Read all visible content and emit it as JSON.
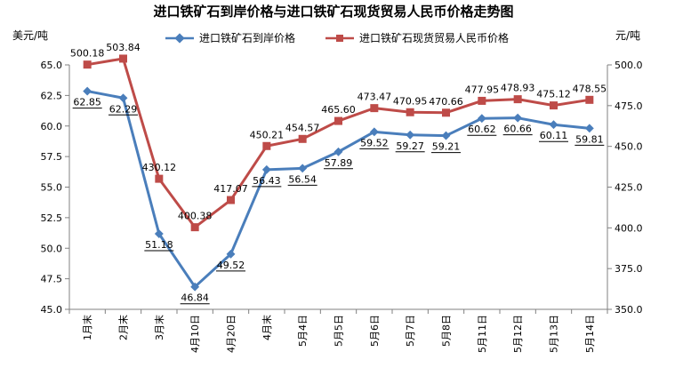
{
  "chart_data": {
    "type": "line",
    "title": "进口铁矿石到岸价格与进口铁矿石现货贸易人民币价格走势图",
    "ylabel_left": "美元/吨",
    "ylabel_right": "元/吨",
    "categories": [
      "1月末",
      "2月末",
      "3月末",
      "4月10日",
      "4月20日",
      "4月末",
      "5月4日",
      "5月5日",
      "5月6日",
      "5月7日",
      "5月8日",
      "5月11日",
      "5月12日",
      "5月13日",
      "5月14日"
    ],
    "ylim_left": [
      45.0,
      65.0
    ],
    "yticks_left": [
      "45.0",
      "47.5",
      "50.0",
      "52.5",
      "55.0",
      "57.5",
      "60.0",
      "62.5",
      "65.0"
    ],
    "ylim_right": [
      350.0,
      500.0
    ],
    "yticks_right": [
      "350.0",
      "375.0",
      "400.0",
      "425.0",
      "450.0",
      "475.0",
      "500.0"
    ],
    "grid": false,
    "legend_position": "top",
    "series": [
      {
        "name": "进口铁矿石到岸价格",
        "axis": "left",
        "color": "#4a7ebb",
        "marker": "diamond",
        "values": [
          62.85,
          62.29,
          51.18,
          46.84,
          49.52,
          56.43,
          56.54,
          57.89,
          59.52,
          59.27,
          59.21,
          60.62,
          60.66,
          60.11,
          59.81
        ],
        "labels": [
          "62.85",
          "62.29",
          "51.18",
          "46.84",
          "49.52",
          "56.43",
          "56.54",
          "57.89",
          "59.52",
          "59.27",
          "59.21",
          "60.62",
          "60.66",
          "60.11",
          "59.81"
        ]
      },
      {
        "name": "进口铁矿石现货贸易人民币价格",
        "axis": "right",
        "color": "#be4b48",
        "marker": "square",
        "values": [
          500.18,
          503.84,
          430.12,
          400.38,
          417.07,
          450.21,
          454.57,
          465.6,
          473.47,
          470.95,
          470.66,
          477.95,
          478.93,
          475.12,
          478.55
        ],
        "labels": [
          "500.18",
          "503.84",
          "430.12",
          "400.38",
          "417.07",
          "450.21",
          "454.57",
          "465.60",
          "473.47",
          "470.95",
          "470.66",
          "477.95",
          "478.93",
          "475.12",
          "478.55"
        ]
      }
    ]
  }
}
